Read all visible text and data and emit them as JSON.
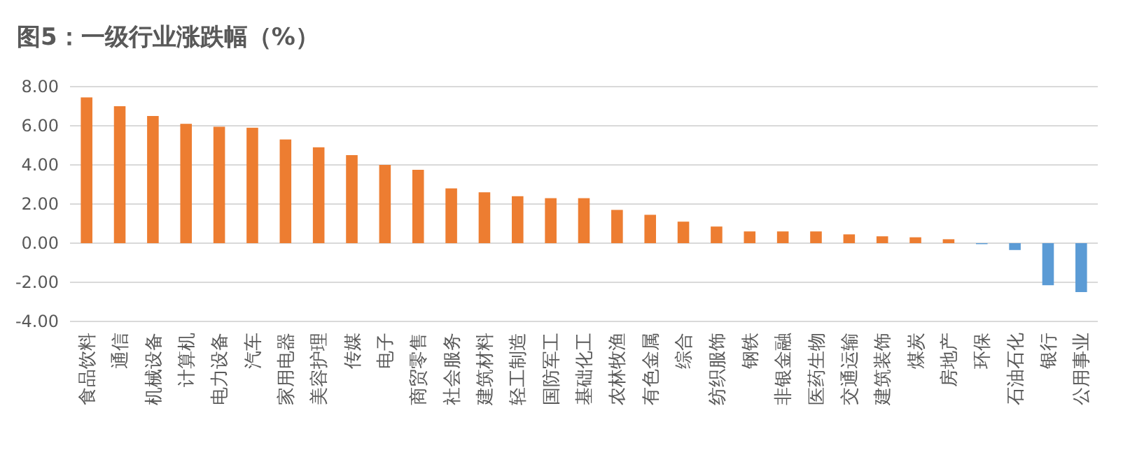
{
  "chart_data": {
    "type": "bar",
    "title": "图5：一级行业涨跌幅（%）",
    "categories": [
      "食品饮料",
      "通信",
      "机械设备",
      "计算机",
      "电力设备",
      "汽车",
      "家用电器",
      "美容护理",
      "传媒",
      "电子",
      "商贸零售",
      "社会服务",
      "建筑材料",
      "轻工制造",
      "国防军工",
      "基础化工",
      "农林牧渔",
      "有色金属",
      "综合",
      "纺织服饰",
      "钢铁",
      "非银金融",
      "医药生物",
      "交通运输",
      "建筑装饰",
      "煤炭",
      "房地产",
      "环保",
      "石油石化",
      "银行",
      "公用事业"
    ],
    "values": [
      7.45,
      7.0,
      6.5,
      6.1,
      5.95,
      5.9,
      5.3,
      4.9,
      4.5,
      4.0,
      3.75,
      2.8,
      2.6,
      2.4,
      2.3,
      2.3,
      1.7,
      1.45,
      1.1,
      0.85,
      0.6,
      0.6,
      0.6,
      0.45,
      0.35,
      0.3,
      0.2,
      -0.05,
      -0.35,
      -2.15,
      -2.5
    ],
    "colors": [
      "#ed7d31",
      "#ed7d31",
      "#ed7d31",
      "#ed7d31",
      "#ed7d31",
      "#ed7d31",
      "#ed7d31",
      "#ed7d31",
      "#ed7d31",
      "#ed7d31",
      "#ed7d31",
      "#ed7d31",
      "#ed7d31",
      "#ed7d31",
      "#ed7d31",
      "#ed7d31",
      "#ed7d31",
      "#ed7d31",
      "#ed7d31",
      "#ed7d31",
      "#ed7d31",
      "#ed7d31",
      "#ed7d31",
      "#ed7d31",
      "#ed7d31",
      "#ed7d31",
      "#ed7d31",
      "#5b9bd5",
      "#5b9bd5",
      "#5b9bd5",
      "#5b9bd5"
    ],
    "ylim": [
      -4,
      8
    ],
    "yticks": [
      {
        "value": -4,
        "label": "-4.00"
      },
      {
        "value": -2,
        "label": "-2.00"
      },
      {
        "value": 0,
        "label": "0.00"
      },
      {
        "value": 2,
        "label": "2.00"
      },
      {
        "value": 4,
        "label": "4.00"
      },
      {
        "value": 6,
        "label": "6.00"
      },
      {
        "value": 8,
        "label": "8.00"
      }
    ],
    "grid": "y"
  }
}
